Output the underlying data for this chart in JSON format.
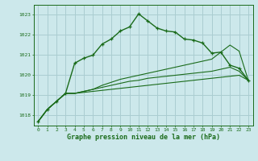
{
  "title": "Graphe pression niveau de la mer (hPa)",
  "background_color": "#cce8eb",
  "grid_color": "#aacdd1",
  "line_color_main": "#1a6b1a",
  "xlim": [
    -0.5,
    23.5
  ],
  "ylim": [
    1017.5,
    1023.5
  ],
  "yticks": [
    1018,
    1019,
    1020,
    1021,
    1022,
    1023
  ],
  "xticks": [
    0,
    1,
    2,
    3,
    4,
    5,
    6,
    7,
    8,
    9,
    10,
    11,
    12,
    13,
    14,
    15,
    16,
    17,
    18,
    19,
    20,
    21,
    22,
    23
  ],
  "main_line": [
    1017.7,
    1018.3,
    1018.7,
    1019.1,
    1020.6,
    1020.85,
    1021.0,
    1021.55,
    1021.8,
    1022.2,
    1022.4,
    1023.05,
    1022.7,
    1022.35,
    1022.2,
    1022.15,
    1021.8,
    1021.75,
    1021.6,
    1021.1,
    1021.15,
    1020.5,
    1020.35,
    1019.75
  ],
  "ref_line1": [
    1017.7,
    1018.3,
    1018.7,
    1019.1,
    1019.1,
    1019.15,
    1019.2,
    1019.25,
    1019.3,
    1019.35,
    1019.4,
    1019.45,
    1019.5,
    1019.55,
    1019.6,
    1019.65,
    1019.7,
    1019.75,
    1019.8,
    1019.85,
    1019.9,
    1019.95,
    1020.0,
    1019.75
  ],
  "ref_line2": [
    1017.7,
    1018.3,
    1018.7,
    1019.1,
    1019.1,
    1019.2,
    1019.3,
    1019.4,
    1019.5,
    1019.6,
    1019.7,
    1019.75,
    1019.85,
    1019.9,
    1019.95,
    1020.0,
    1020.05,
    1020.1,
    1020.15,
    1020.2,
    1020.3,
    1020.4,
    1020.2,
    1019.75
  ],
  "ref_line3": [
    1017.7,
    1018.3,
    1018.7,
    1019.1,
    1019.1,
    1019.2,
    1019.3,
    1019.5,
    1019.65,
    1019.8,
    1019.9,
    1020.0,
    1020.1,
    1020.2,
    1020.3,
    1020.4,
    1020.5,
    1020.6,
    1020.7,
    1020.8,
    1021.15,
    1021.5,
    1021.2,
    1019.75
  ]
}
